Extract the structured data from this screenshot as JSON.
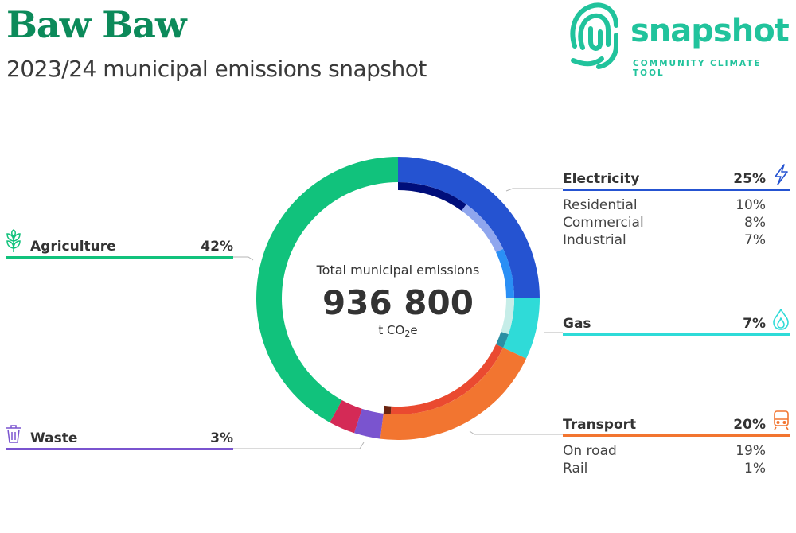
{
  "header": {
    "title": "Baw Baw",
    "subtitle": "2023/24 municipal emissions snapshot",
    "logo_word": "snapshot",
    "logo_tagline": "COMMUNITY CLIMATE TOOL"
  },
  "chart_data": {
    "type": "pie",
    "center": {
      "title": "Total municipal emissions",
      "value": "936 800",
      "unit_prefix": "t CO",
      "unit_sub": "2",
      "unit_suffix": "e"
    },
    "sectors": [
      {
        "name": "Electricity",
        "percent": 25,
        "percent_label": "25%",
        "color": "#2553d1",
        "icon": "lightning-icon",
        "subs": [
          {
            "name": "Residential",
            "percent": 10,
            "percent_label": "10%",
            "color": "#000e7a"
          },
          {
            "name": "Commercial",
            "percent": 8,
            "percent_label": "8%",
            "color": "#8fa6ee"
          },
          {
            "name": "Industrial",
            "percent": 7,
            "percent_label": "7%",
            "color": "#2a8ff5"
          }
        ]
      },
      {
        "name": "Gas",
        "percent": 7,
        "percent_label": "7%",
        "color": "#2fdbd8",
        "icon": "flame-icon",
        "subs": [
          {
            "name": "",
            "percent": 5,
            "percent_label": "",
            "color": "#c6ede8"
          },
          {
            "name": "",
            "percent": 2,
            "percent_label": "",
            "color": "#2a8fa3"
          }
        ]
      },
      {
        "name": "Transport",
        "percent": 20,
        "percent_label": "20%",
        "color": "#f27530",
        "icon": "train-icon",
        "subs": [
          {
            "name": "On road",
            "percent": 19,
            "percent_label": "19%",
            "color": "#ea4a30"
          },
          {
            "name": "Rail",
            "percent": 1,
            "percent_label": "1%",
            "color": "#6b2410"
          }
        ]
      },
      {
        "name": "Waste",
        "percent": 3,
        "percent_label": "3%",
        "color": "#7a54cf",
        "icon": "bin-icon",
        "subs": []
      },
      {
        "name": "",
        "percent": 3,
        "percent_label": "",
        "color": "#d42a56",
        "icon": "",
        "subs": []
      },
      {
        "name": "Agriculture",
        "percent": 42,
        "percent_label": "42%",
        "color": "#11c27c",
        "icon": "plant-icon",
        "subs": []
      }
    ]
  }
}
